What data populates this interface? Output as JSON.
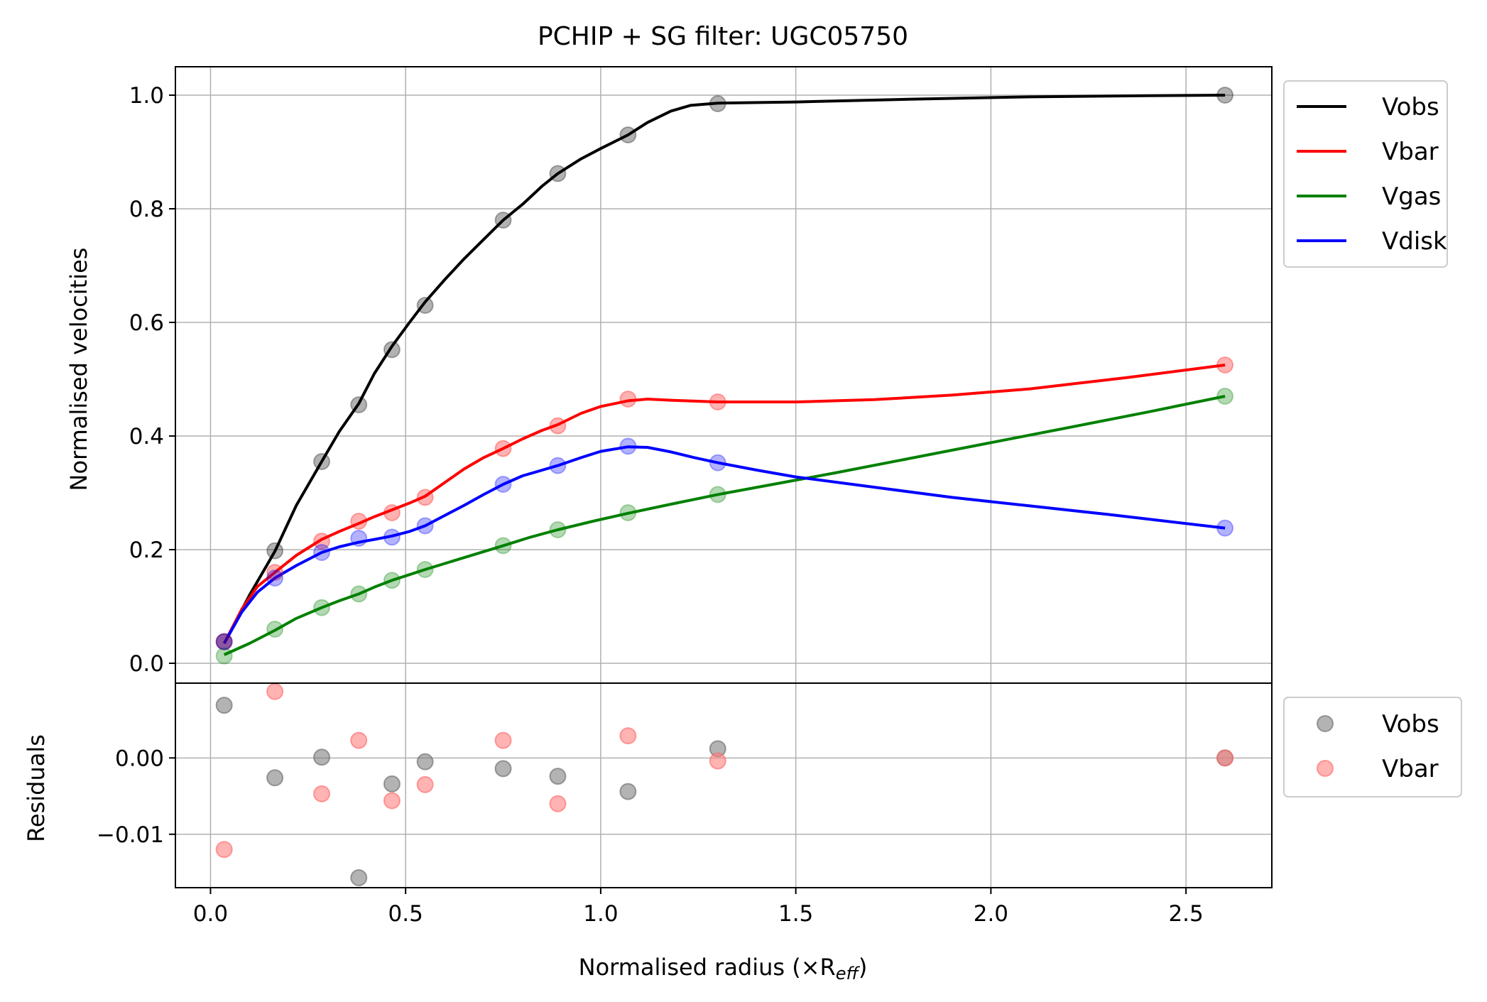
{
  "chart_data": [
    {
      "type": "line",
      "title": "PCHIP + SG filter: UGC05750",
      "xlabel": "Normalised radius (×R",
      "xlabel_sub": "eff",
      "xlabel_end": ")",
      "ylabel": "Normalised velocities",
      "xlim": [
        -0.09,
        2.72
      ],
      "ylim": [
        -0.035,
        1.05
      ],
      "grid": true,
      "legend_position": "outside-top-right",
      "x_ticks": [
        0.0,
        0.5,
        1.0,
        1.5,
        2.0,
        2.5
      ],
      "x_tick_labels": [
        "0.0",
        "0.5",
        "1.0",
        "1.5",
        "2.0",
        "2.5"
      ],
      "y_ticks": [
        0.0,
        0.2,
        0.4,
        0.6,
        0.8,
        1.0
      ],
      "y_tick_labels": [
        "0.0",
        "0.2",
        "0.4",
        "0.6",
        "0.8",
        "1.0"
      ],
      "x": [
        0.035,
        0.165,
        0.285,
        0.38,
        0.465,
        0.55,
        0.75,
        0.89,
        1.07,
        1.3,
        2.6
      ],
      "series": [
        {
          "name": "Vobs",
          "color": "#000000",
          "points": [
            0.038,
            0.198,
            0.355,
            0.455,
            0.552,
            0.63,
            0.78,
            0.862,
            0.93,
            0.985,
            1.0
          ],
          "curve": [
            [
              0.035,
              0.035
            ],
            [
              0.1,
              0.12
            ],
            [
              0.165,
              0.197
            ],
            [
              0.22,
              0.278
            ],
            [
              0.285,
              0.355
            ],
            [
              0.33,
              0.408
            ],
            [
              0.38,
              0.457
            ],
            [
              0.42,
              0.51
            ],
            [
              0.465,
              0.558
            ],
            [
              0.51,
              0.6
            ],
            [
              0.55,
              0.636
            ],
            [
              0.6,
              0.675
            ],
            [
              0.65,
              0.712
            ],
            [
              0.7,
              0.746
            ],
            [
              0.75,
              0.78
            ],
            [
              0.8,
              0.808
            ],
            [
              0.85,
              0.84
            ],
            [
              0.89,
              0.862
            ],
            [
              0.95,
              0.888
            ],
            [
              1.0,
              0.906
            ],
            [
              1.07,
              0.93
            ],
            [
              1.12,
              0.952
            ],
            [
              1.18,
              0.972
            ],
            [
              1.23,
              0.982
            ],
            [
              1.3,
              0.986
            ],
            [
              1.5,
              0.988
            ],
            [
              1.8,
              0.993
            ],
            [
              2.1,
              0.997
            ],
            [
              2.4,
              0.999
            ],
            [
              2.6,
              1.0
            ]
          ]
        },
        {
          "name": "Vbar",
          "color": "#ff0000",
          "points": [
            0.038,
            0.16,
            0.215,
            0.25,
            0.265,
            0.292,
            0.378,
            0.418,
            0.465,
            0.46,
            0.525
          ],
          "curve": [
            [
              0.035,
              0.035
            ],
            [
              0.08,
              0.095
            ],
            [
              0.12,
              0.135
            ],
            [
              0.165,
              0.16
            ],
            [
              0.22,
              0.19
            ],
            [
              0.285,
              0.218
            ],
            [
              0.33,
              0.232
            ],
            [
              0.38,
              0.246
            ],
            [
              0.42,
              0.258
            ],
            [
              0.465,
              0.27
            ],
            [
              0.51,
              0.282
            ],
            [
              0.55,
              0.294
            ],
            [
              0.6,
              0.318
            ],
            [
              0.65,
              0.342
            ],
            [
              0.7,
              0.362
            ],
            [
              0.75,
              0.378
            ],
            [
              0.8,
              0.395
            ],
            [
              0.85,
              0.41
            ],
            [
              0.89,
              0.42
            ],
            [
              0.95,
              0.44
            ],
            [
              1.0,
              0.452
            ],
            [
              1.07,
              0.462
            ],
            [
              1.12,
              0.465
            ],
            [
              1.18,
              0.463
            ],
            [
              1.3,
              0.46
            ],
            [
              1.5,
              0.46
            ],
            [
              1.7,
              0.464
            ],
            [
              1.9,
              0.472
            ],
            [
              2.1,
              0.483
            ],
            [
              2.35,
              0.503
            ],
            [
              2.6,
              0.525
            ]
          ]
        },
        {
          "name": "Vgas",
          "color": "#008000",
          "points": [
            0.013,
            0.06,
            0.098,
            0.122,
            0.146,
            0.165,
            0.207,
            0.235,
            0.265,
            0.297,
            0.47
          ],
          "curve": [
            [
              0.035,
              0.015
            ],
            [
              0.1,
              0.035
            ],
            [
              0.165,
              0.058
            ],
            [
              0.22,
              0.079
            ],
            [
              0.285,
              0.098
            ],
            [
              0.33,
              0.11
            ],
            [
              0.38,
              0.122
            ],
            [
              0.42,
              0.134
            ],
            [
              0.465,
              0.146
            ],
            [
              0.51,
              0.156
            ],
            [
              0.55,
              0.165
            ],
            [
              0.65,
              0.186
            ],
            [
              0.75,
              0.207
            ],
            [
              0.82,
              0.222
            ],
            [
              0.89,
              0.235
            ],
            [
              0.98,
              0.25
            ],
            [
              1.07,
              0.264
            ],
            [
              1.18,
              0.28
            ],
            [
              1.3,
              0.297
            ],
            [
              1.6,
              0.335
            ],
            [
              1.9,
              0.375
            ],
            [
              2.2,
              0.415
            ],
            [
              2.4,
              0.442
            ],
            [
              2.6,
              0.47
            ]
          ]
        },
        {
          "name": "Vdisk",
          "color": "#0000ff",
          "points": [
            0.038,
            0.15,
            0.195,
            0.22,
            0.222,
            0.242,
            0.315,
            0.348,
            0.382,
            0.353,
            0.238
          ],
          "curve": [
            [
              0.035,
              0.035
            ],
            [
              0.08,
              0.09
            ],
            [
              0.12,
              0.125
            ],
            [
              0.165,
              0.15
            ],
            [
              0.22,
              0.172
            ],
            [
              0.285,
              0.195
            ],
            [
              0.33,
              0.205
            ],
            [
              0.38,
              0.213
            ],
            [
              0.42,
              0.218
            ],
            [
              0.465,
              0.224
            ],
            [
              0.51,
              0.232
            ],
            [
              0.55,
              0.242
            ],
            [
              0.6,
              0.26
            ],
            [
              0.65,
              0.278
            ],
            [
              0.7,
              0.297
            ],
            [
              0.75,
              0.315
            ],
            [
              0.8,
              0.33
            ],
            [
              0.85,
              0.34
            ],
            [
              0.89,
              0.348
            ],
            [
              0.95,
              0.362
            ],
            [
              1.0,
              0.373
            ],
            [
              1.07,
              0.381
            ],
            [
              1.12,
              0.38
            ],
            [
              1.18,
              0.372
            ],
            [
              1.24,
              0.362
            ],
            [
              1.3,
              0.353
            ],
            [
              1.4,
              0.34
            ],
            [
              1.5,
              0.328
            ],
            [
              1.7,
              0.31
            ],
            [
              1.9,
              0.292
            ],
            [
              2.1,
              0.277
            ],
            [
              2.3,
              0.262
            ],
            [
              2.45,
              0.25
            ],
            [
              2.6,
              0.238
            ]
          ]
        }
      ]
    },
    {
      "type": "scatter",
      "ylabel": "Residuals",
      "xlim": [
        -0.09,
        2.72
      ],
      "ylim": [
        -0.017,
        0.0098
      ],
      "grid": true,
      "legend_position": "outside-top-right",
      "y_ticks": [
        -0.01,
        0.0
      ],
      "y_tick_labels": [
        "−0.01",
        "0.00"
      ],
      "series": [
        {
          "name": "Vobs",
          "color": "#808080",
          "x": [
            0.035,
            0.165,
            0.285,
            0.38,
            0.465,
            0.55,
            0.75,
            0.89,
            1.07,
            1.3,
            2.6
          ],
          "y": [
            0.0069,
            -0.0026,
            0.0001,
            -0.0157,
            -0.0034,
            -0.0005,
            -0.0014,
            -0.0024,
            -0.0044,
            0.0012,
            0.0
          ]
        },
        {
          "name": "Vbar",
          "color": "#ff8080",
          "x": [
            0.035,
            0.165,
            0.285,
            0.38,
            0.465,
            0.55,
            0.75,
            0.89,
            1.07,
            1.3,
            2.6
          ],
          "y": [
            -0.012,
            0.0087,
            -0.0047,
            0.0023,
            -0.0056,
            -0.0035,
            0.0023,
            -0.006,
            0.0029,
            -0.0004,
            0.0
          ]
        }
      ]
    }
  ]
}
